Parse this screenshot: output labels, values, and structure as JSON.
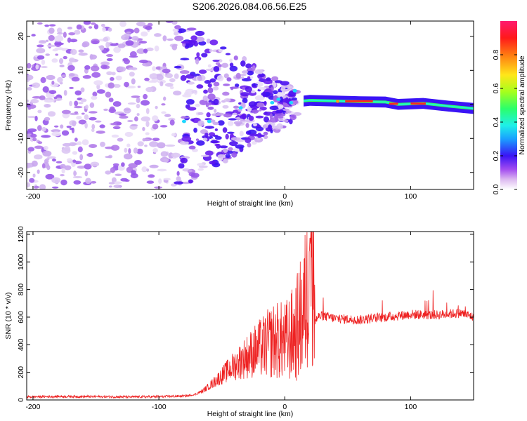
{
  "title": "S206.2026.084.06.56.E25",
  "spectrogram": {
    "type": "heatmap",
    "xlabel": "Height of straight line (km)",
    "ylabel": "Frequency (Hz)",
    "xlim": [
      -205,
      150
    ],
    "ylim": [
      -25,
      24.5
    ],
    "xticks": [
      -200,
      -100,
      0,
      100
    ],
    "xtick_labels": [
      "-200",
      "-100",
      "0",
      "100"
    ],
    "yticks": [
      -20,
      -10,
      0,
      10,
      20
    ],
    "ytick_labels": [
      "-20",
      "-10",
      "0",
      "10",
      "20"
    ],
    "colorbar": {
      "label": "Normalized spectral amplitude",
      "range": [
        0.0,
        1.0
      ],
      "ticks": [
        0.0,
        0.2,
        0.4,
        0.6,
        0.8
      ],
      "tick_labels": [
        "0.0",
        "0.2",
        "0.4",
        "0.6",
        "0.8"
      ]
    }
  },
  "chart_data": {
    "type": "line",
    "title": "S206.2026.084.06.56.E25",
    "xlabel": "Height of straight line (km)",
    "ylabel": "SNR (10 * v/v)",
    "xlim": [
      -205,
      150
    ],
    "ylim": [
      0,
      1220
    ],
    "xticks": [
      -200,
      -100,
      0,
      100
    ],
    "xtick_labels": [
      "-200",
      "-100",
      "0",
      "100"
    ],
    "yticks": [
      0,
      200,
      400,
      600,
      800,
      1000,
      1200
    ],
    "ytick_labels": [
      "0",
      "200",
      "400",
      "600",
      "800",
      "1000",
      "1200"
    ],
    "series": [
      {
        "name": "SNR",
        "color": "#ee2222",
        "x": [
          -205,
          -180,
          -150,
          -120,
          -100,
          -80,
          -72,
          -65,
          -55,
          -45,
          -35,
          -25,
          -15,
          -8,
          0,
          8,
          14,
          18,
          20,
          24,
          26,
          30,
          40,
          60,
          80,
          100,
          120,
          140,
          150
        ],
        "y": [
          22,
          25,
          24,
          22,
          24,
          28,
          35,
          60,
          120,
          180,
          230,
          270,
          300,
          320,
          300,
          340,
          420,
          520,
          1200,
          560,
          600,
          610,
          590,
          580,
          600,
          620,
          615,
          630,
          600
        ]
      }
    ]
  }
}
